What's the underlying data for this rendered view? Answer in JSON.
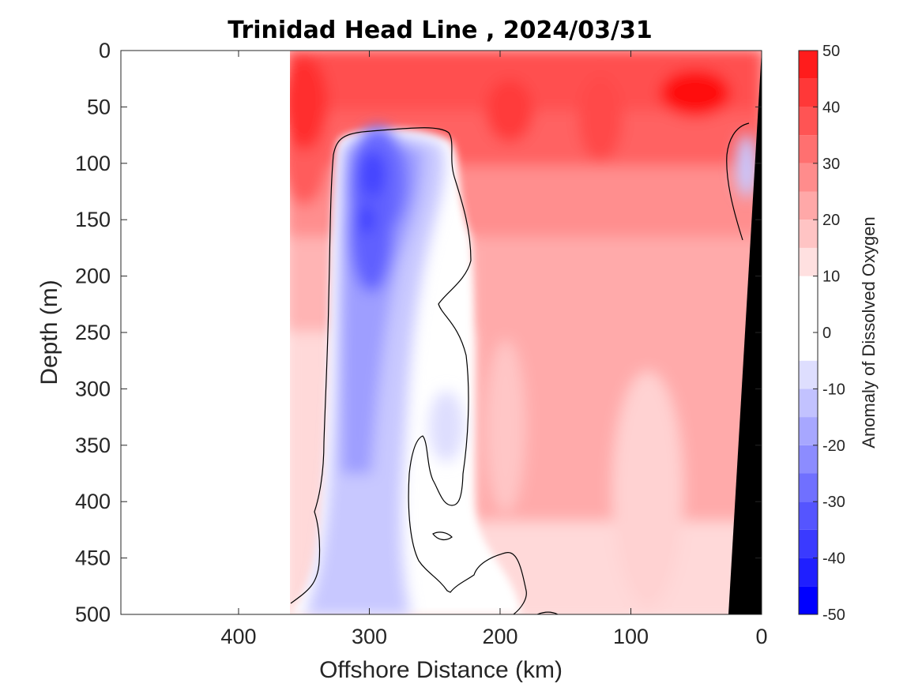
{
  "chart_data": {
    "type": "heatmap",
    "title": "Trinidad Head Line , 2024/03/31",
    "xlabel": "Offshore Distance (km)",
    "ylabel": "Depth (m)",
    "xlim": [
      490,
      0
    ],
    "ylim": [
      0,
      500
    ],
    "x_reversed": true,
    "y_reversed": true,
    "xticks": [
      400,
      300,
      200,
      100,
      0
    ],
    "yticks": [
      0,
      50,
      100,
      150,
      200,
      250,
      300,
      350,
      400,
      450,
      500
    ],
    "colorbar": {
      "label": "Anomaly of Dissolved Oxygen",
      "range": [
        -50,
        50
      ],
      "ticks": [
        50,
        40,
        30,
        20,
        10,
        0,
        -10,
        -20,
        -30,
        -40,
        -50
      ],
      "levels": [
        -50,
        -45,
        -40,
        -35,
        -30,
        -25,
        -20,
        -15,
        -10,
        -5,
        5,
        10,
        15,
        20,
        25,
        30,
        35,
        40,
        45,
        50
      ],
      "colors": [
        "#0000ff",
        "#1f1fff",
        "#3a3aff",
        "#5555ff",
        "#7070ff",
        "#8c8cff",
        "#a7a7ff",
        "#c2c2ff",
        "#dedefe",
        "#ffffff",
        "#ffffff",
        "#ffe0e0",
        "#ffc4c4",
        "#ffa8a8",
        "#ff8c8c",
        "#ff7070",
        "#ff5454",
        "#ff3838",
        "#ff1c1c",
        "#ff0000"
      ]
    },
    "data_extent_x": [
      360,
      0
    ],
    "bathymetry_color": "#000000",
    "features": [
      {
        "name": "surface oxygen maximum",
        "x_range": [
          360,
          0
        ],
        "depth_range": [
          0,
          90
        ],
        "max_value": 45
      },
      {
        "name": "offshore minimum core",
        "x_range": [
          330,
          260
        ],
        "depth_range": [
          75,
          500
        ],
        "min_value": -35,
        "core_depth": 150
      },
      {
        "name": "nearshore minimum",
        "x_range": [
          25,
          10
        ],
        "depth_range": [
          75,
          150
        ],
        "min_value": -10
      }
    ]
  }
}
